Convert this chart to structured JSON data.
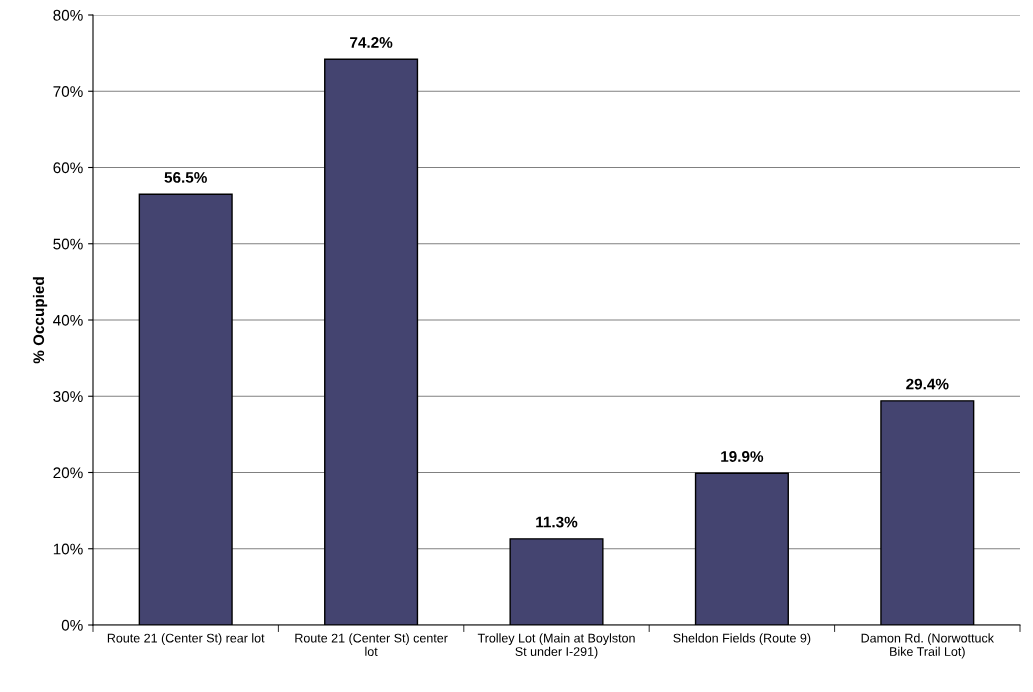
{
  "chart_data": {
    "type": "bar",
    "categories": [
      "Route 21 (Center St) rear lot",
      "Route 21 (Center St) center\nlot",
      "Trolley Lot (Main at Boylston\nSt under I-291)",
      "Sheldon Fields (Route 9)",
      "Damon Rd. (Norwottuck\nBike Trail Lot)"
    ],
    "values": [
      56.5,
      74.2,
      11.3,
      19.9,
      29.4
    ],
    "value_labels": [
      "56.5%",
      "74.2%",
      "11.3%",
      "19.9%",
      "29.4%"
    ],
    "color": "#444470",
    "ylabel": "% Occupied",
    "ylim": [
      0,
      80
    ],
    "yticks": [
      {
        "value": 0,
        "label": "0%"
      },
      {
        "value": 10,
        "label": "10%"
      },
      {
        "value": 20,
        "label": "20%"
      },
      {
        "value": 30,
        "label": "30%"
      },
      {
        "value": 40,
        "label": "40%"
      },
      {
        "value": 50,
        "label": "50%"
      },
      {
        "value": 60,
        "label": "60%"
      },
      {
        "value": 70,
        "label": "70%"
      },
      {
        "value": 80,
        "label": "80%"
      }
    ],
    "grid": "y"
  }
}
